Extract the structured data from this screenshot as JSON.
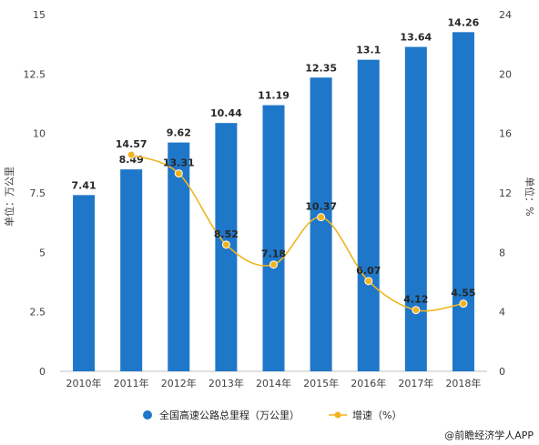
{
  "chart_data": {
    "type": "bar+line",
    "categories": [
      "2010年",
      "2011年",
      "2012年",
      "2013年",
      "2014年",
      "2015年",
      "2016年",
      "2017年",
      "2018年"
    ],
    "series": [
      {
        "name": "全国高速公路总里程（万公里）",
        "type": "bar",
        "axis": "left",
        "values": [
          7.41,
          8.49,
          9.62,
          10.44,
          11.19,
          12.35,
          13.1,
          13.64,
          14.26
        ],
        "labels": [
          "7.41",
          "8.49",
          "9.62",
          "10.44",
          "11.19",
          "12.35",
          "13.1",
          "13.64",
          "14.26"
        ]
      },
      {
        "name": "增速（%）",
        "type": "line",
        "axis": "right",
        "values": [
          null,
          14.57,
          13.31,
          8.52,
          7.18,
          10.37,
          6.07,
          4.12,
          4.55
        ],
        "labels": [
          "",
          "14.57",
          "13.31",
          "8.52",
          "7.18",
          "10.37",
          "6.07",
          "4.12",
          "4.55"
        ]
      }
    ],
    "y_left": {
      "label": "单位：万公里",
      "range": [
        0,
        15
      ],
      "ticks": [
        0,
        2.5,
        5,
        7.5,
        10,
        12.5,
        15
      ],
      "tick_labels": [
        "0",
        "2.5",
        "5",
        "7.5",
        "10",
        "12.5",
        "15"
      ]
    },
    "y_right": {
      "label": "单位：%",
      "range": [
        0,
        24
      ],
      "ticks": [
        0,
        4,
        8,
        12,
        16,
        20,
        24
      ],
      "tick_labels": [
        "0",
        "4",
        "8",
        "12",
        "16",
        "20",
        "24"
      ]
    },
    "grid": false,
    "legend_position": "bottom",
    "bar_color": "#1f77c9",
    "line_color": "#f0b41e",
    "credit": "@前瞻经济学人APP"
  }
}
